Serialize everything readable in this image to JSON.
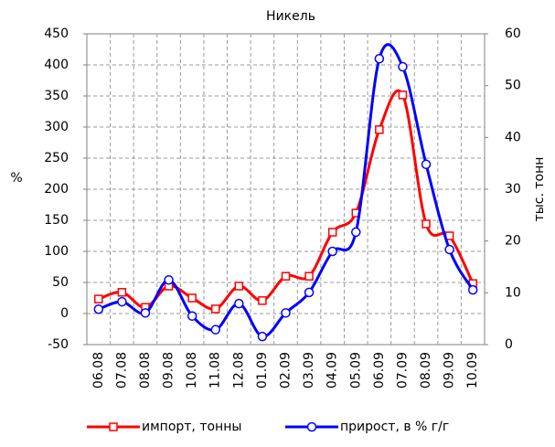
{
  "chart_data": {
    "type": "line",
    "title": "Никель",
    "categories": [
      "06.08",
      "07.08",
      "08.08",
      "09.08",
      "10.08",
      "11.08",
      "12.08",
      "01.09",
      "02.09",
      "03.09",
      "04.09",
      "05.09",
      "06.09",
      "07.09",
      "08.09",
      "09.09",
      "10.09"
    ],
    "ylabel": "%",
    "y2label": "тыс. тонн",
    "ylim": [
      -50,
      450
    ],
    "yticks": [
      -50,
      0,
      50,
      100,
      150,
      200,
      250,
      300,
      350,
      400,
      450
    ],
    "y2lim": [
      0,
      60
    ],
    "y2ticks": [
      0,
      10,
      20,
      30,
      40,
      50,
      60
    ],
    "grid": true,
    "legend": "bottom",
    "series": [
      {
        "name": "импорт, тонны",
        "color": "#ff0000",
        "marker": "square",
        "axis": "y2",
        "values": [
          8.8,
          10.1,
          7.2,
          11.3,
          9.0,
          6.9,
          11.3,
          8.5,
          13.2,
          13.2,
          21.7,
          25.4,
          41.5,
          48.2,
          23.3,
          21.0,
          11.8
        ]
      },
      {
        "name": "прирост, в % г/г",
        "color": "#0000ff",
        "marker": "circle",
        "values": [
          7,
          19,
          1,
          54,
          -4,
          -26,
          16,
          -37,
          1,
          34,
          100,
          131,
          410,
          397,
          240,
          103,
          38
        ]
      }
    ]
  }
}
